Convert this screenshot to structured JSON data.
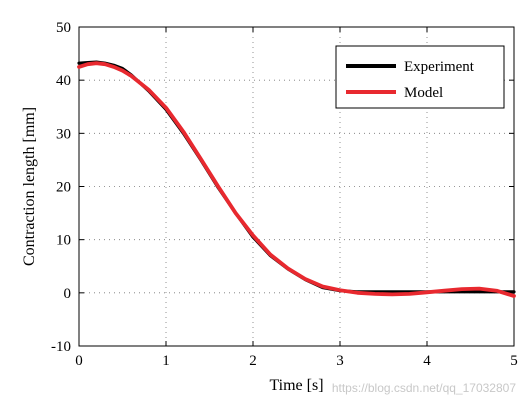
{
  "chart_data": {
    "type": "line",
    "xlabel": "Time [s]",
    "ylabel": "Contraction length [mm]",
    "xlim": [
      0,
      5
    ],
    "ylim": [
      -10,
      50
    ],
    "xticks": [
      "0",
      "1",
      "2",
      "3",
      "4",
      "5"
    ],
    "yticks": [
      "-10",
      "0",
      "10",
      "20",
      "30",
      "40",
      "50"
    ],
    "grid": true,
    "legend_position": "top-right",
    "series": [
      {
        "name": "Experiment",
        "color": "#000000",
        "x": [
          0,
          0.1,
          0.2,
          0.3,
          0.4,
          0.5,
          0.6,
          0.8,
          1.0,
          1.2,
          1.4,
          1.6,
          1.8,
          2.0,
          2.2,
          2.4,
          2.6,
          2.8,
          3.0,
          3.2,
          3.4,
          3.6,
          3.8,
          4.0,
          4.2,
          4.4,
          4.6,
          4.8,
          5.0
        ],
        "y": [
          43.2,
          43.3,
          43.4,
          43.2,
          42.8,
          42.2,
          41.0,
          38.0,
          34.5,
          30.0,
          25.0,
          19.8,
          15.0,
          10.5,
          7.0,
          4.5,
          2.5,
          1.0,
          0.4,
          0.2,
          0.2,
          0.2,
          0.2,
          0.2,
          0.2,
          0.2,
          0.2,
          0.2,
          0.2
        ]
      },
      {
        "name": "Model",
        "color": "#e8292f",
        "x": [
          0,
          0.1,
          0.2,
          0.3,
          0.4,
          0.5,
          0.6,
          0.8,
          1.0,
          1.2,
          1.4,
          1.6,
          1.8,
          2.0,
          2.2,
          2.4,
          2.6,
          2.8,
          3.0,
          3.2,
          3.4,
          3.6,
          3.8,
          4.0,
          4.2,
          4.4,
          4.6,
          4.8,
          5.0
        ],
        "y": [
          42.5,
          43.0,
          43.2,
          43.0,
          42.5,
          41.8,
          40.8,
          38.2,
          34.8,
          30.3,
          25.2,
          20.0,
          15.0,
          10.8,
          7.2,
          4.6,
          2.6,
          1.2,
          0.5,
          0.0,
          -0.2,
          -0.3,
          -0.2,
          0.1,
          0.4,
          0.7,
          0.8,
          0.4,
          -0.6
        ]
      }
    ]
  },
  "watermark": "https://blog.csdn.net/qq_17032807"
}
